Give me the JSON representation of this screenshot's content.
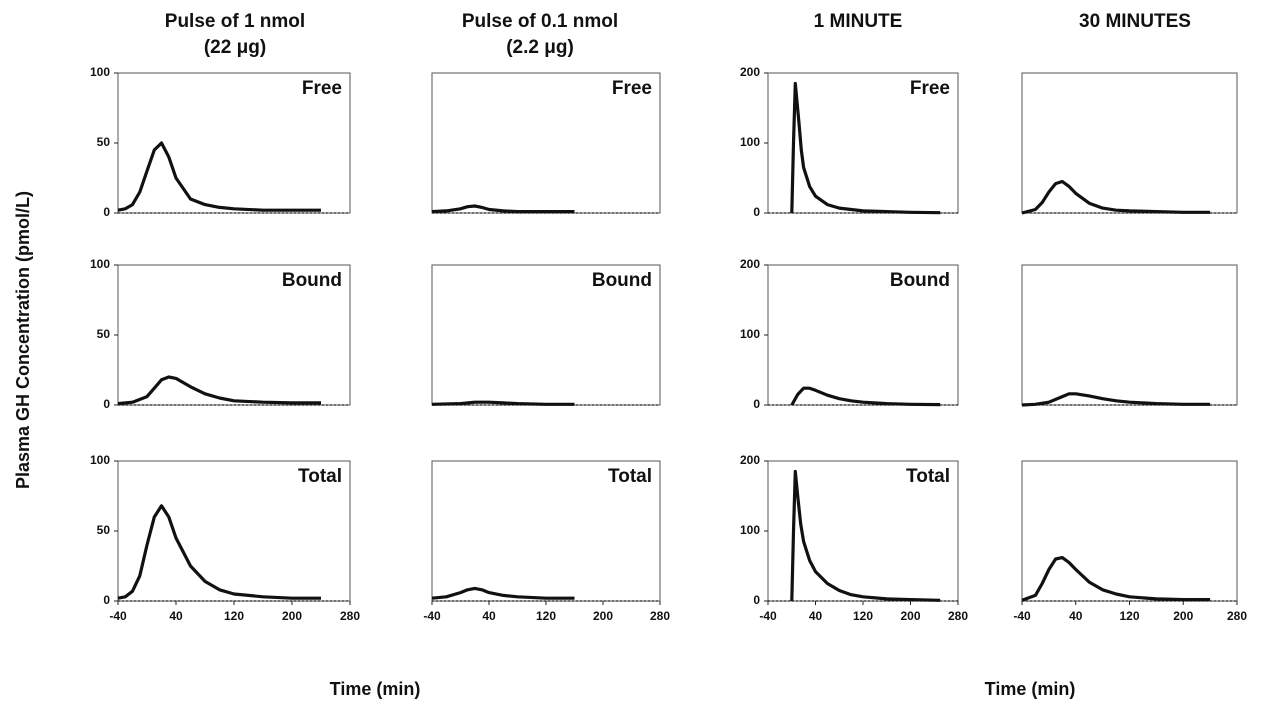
{
  "headers": [
    [
      "Pulse of 1 nmol",
      "(22 μg)"
    ],
    [
      "Pulse of 0.1 nmol",
      "(2.2 μg)"
    ],
    [
      "1 MINUTE"
    ],
    [
      "30 MINUTES"
    ]
  ],
  "y_label": "Plasma GH Concentration (pmol/L)",
  "x_labels": [
    "Time (min)",
    "Time (min)"
  ],
  "chart_data": [
    {
      "type": "line",
      "panel_label": "Free",
      "color": "#111111",
      "xlim": [
        -40,
        280
      ],
      "ylim": [
        0,
        100
      ],
      "yticks": [
        0,
        50,
        100
      ],
      "x": [
        -40,
        -30,
        -20,
        -10,
        0,
        10,
        20,
        30,
        40,
        60,
        80,
        100,
        120,
        160,
        200,
        240
      ],
      "values": [
        2,
        3,
        6,
        15,
        30,
        45,
        50,
        40,
        25,
        10,
        6,
        4,
        3,
        2,
        2,
        2
      ]
    },
    {
      "type": "line",
      "panel_label": "Free",
      "color": "#111111",
      "xlim": [
        -40,
        280
      ],
      "ylim": [
        0,
        100
      ],
      "x": [
        -40,
        -20,
        0,
        10,
        20,
        30,
        40,
        60,
        80,
        120,
        160
      ],
      "values": [
        1,
        1.5,
        3,
        4.5,
        5,
        4,
        2.5,
        1.5,
        1,
        1,
        1
      ]
    },
    {
      "type": "line",
      "panel_label": "Free",
      "color": "#111111",
      "xlim": [
        -40,
        280
      ],
      "ylim": [
        0,
        200
      ],
      "yticks": [
        0,
        100,
        200
      ],
      "x": [
        0,
        3,
        6,
        12,
        16,
        20,
        30,
        40,
        60,
        80,
        100,
        120,
        160,
        200,
        250
      ],
      "values": [
        0,
        100,
        185,
        130,
        90,
        65,
        38,
        24,
        12,
        7,
        5,
        3,
        2,
        1,
        0.5
      ]
    },
    {
      "type": "line",
      "panel_label": "",
      "color": "#111111",
      "xlim": [
        -40,
        280
      ],
      "ylim": [
        0,
        200
      ],
      "x": [
        -40,
        -20,
        -10,
        0,
        10,
        20,
        30,
        40,
        60,
        80,
        100,
        120,
        160,
        200,
        240
      ],
      "values": [
        0,
        5,
        15,
        30,
        42,
        45,
        38,
        28,
        14,
        7,
        4,
        3,
        2,
        1,
        1
      ]
    },
    {
      "type": "line",
      "panel_label": "Bound",
      "color": "#111111",
      "xlim": [
        -40,
        280
      ],
      "ylim": [
        0,
        100
      ],
      "yticks": [
        0,
        50,
        100
      ],
      "x": [
        -40,
        -20,
        0,
        10,
        20,
        30,
        40,
        60,
        80,
        100,
        120,
        160,
        200,
        240
      ],
      "values": [
        1,
        2,
        6,
        12,
        18,
        20,
        19,
        13,
        8,
        5,
        3,
        2,
        1.5,
        1.5
      ]
    },
    {
      "type": "line",
      "panel_label": "Bound",
      "color": "#111111",
      "xlim": [
        -40,
        280
      ],
      "ylim": [
        0,
        100
      ],
      "x": [
        -40,
        0,
        20,
        40,
        60,
        80,
        120,
        160
      ],
      "values": [
        0.5,
        1,
        2,
        2,
        1.5,
        1,
        0.5,
        0.5
      ]
    },
    {
      "type": "line",
      "panel_label": "Bound",
      "color": "#111111",
      "xlim": [
        -40,
        280
      ],
      "ylim": [
        0,
        200
      ],
      "yticks": [
        0,
        100,
        200
      ],
      "x": [
        0,
        10,
        20,
        30,
        40,
        60,
        80,
        100,
        120,
        160,
        200,
        250
      ],
      "values": [
        0,
        15,
        24,
        24,
        21,
        14,
        9,
        6,
        4,
        2,
        1,
        0.5
      ]
    },
    {
      "type": "line",
      "panel_label": "",
      "color": "#111111",
      "xlim": [
        -40,
        280
      ],
      "ylim": [
        0,
        200
      ],
      "x": [
        -40,
        -20,
        0,
        20,
        30,
        40,
        60,
        80,
        100,
        120,
        160,
        200,
        240
      ],
      "values": [
        0,
        1,
        4,
        12,
        16,
        16,
        13,
        9,
        6,
        4,
        2,
        1,
        1
      ]
    },
    {
      "type": "line",
      "panel_label": "Total",
      "color": "#111111",
      "xlim": [
        -40,
        280
      ],
      "ylim": [
        0,
        100
      ],
      "yticks": [
        0,
        50,
        100
      ],
      "xticks": [
        -40,
        40,
        120,
        200,
        280
      ],
      "x": [
        -40,
        -30,
        -20,
        -10,
        0,
        10,
        20,
        30,
        40,
        60,
        80,
        100,
        120,
        160,
        200,
        240
      ],
      "values": [
        2,
        3,
        7,
        18,
        40,
        60,
        68,
        60,
        45,
        25,
        14,
        8,
        5,
        3,
        2,
        2
      ]
    },
    {
      "type": "line",
      "panel_label": "Total",
      "color": "#111111",
      "xlim": [
        -40,
        280
      ],
      "ylim": [
        0,
        100
      ],
      "xticks": [
        -40,
        40,
        120,
        200,
        280
      ],
      "x": [
        -40,
        -20,
        0,
        10,
        20,
        30,
        40,
        60,
        80,
        120,
        160
      ],
      "values": [
        2,
        3,
        6,
        8,
        9,
        8,
        6,
        4,
        3,
        2,
        2
      ]
    },
    {
      "type": "line",
      "panel_label": "Total",
      "color": "#111111",
      "xlim": [
        -40,
        280
      ],
      "ylim": [
        0,
        200
      ],
      "yticks": [
        0,
        100,
        200
      ],
      "xticks": [
        -40,
        40,
        120,
        200,
        280
      ],
      "x": [
        0,
        3,
        6,
        10,
        15,
        20,
        30,
        40,
        60,
        80,
        100,
        120,
        160,
        200,
        250
      ],
      "values": [
        0,
        100,
        185,
        150,
        110,
        85,
        58,
        42,
        25,
        15,
        9,
        6,
        3,
        2,
        1
      ]
    },
    {
      "type": "line",
      "panel_label": "",
      "color": "#111111",
      "xlim": [
        -40,
        280
      ],
      "ylim": [
        0,
        200
      ],
      "xticks": [
        -40,
        40,
        120,
        200,
        280
      ],
      "x": [
        -40,
        -20,
        -10,
        0,
        10,
        20,
        30,
        40,
        60,
        80,
        100,
        120,
        160,
        200,
        240
      ],
      "values": [
        1,
        8,
        25,
        45,
        60,
        62,
        55,
        45,
        27,
        16,
        10,
        6,
        3,
        2,
        2
      ]
    }
  ]
}
